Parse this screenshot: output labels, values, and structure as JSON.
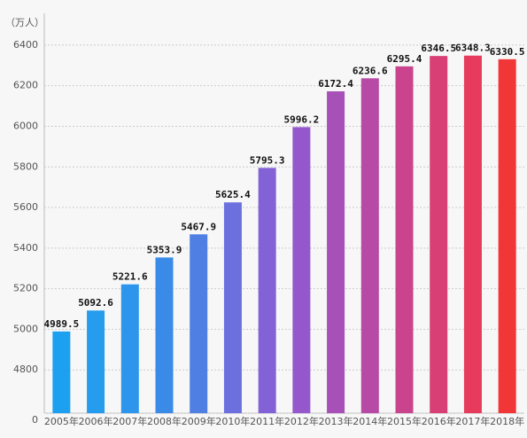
{
  "chart_data": {
    "type": "bar",
    "y_unit": "（万人）",
    "categories": [
      "2005年",
      "2006年",
      "2007年",
      "2008年",
      "2009年",
      "2010年",
      "2011年",
      "2012年",
      "2013年",
      "2014年",
      "2015年",
      "2016年",
      "2017年",
      "2018年"
    ],
    "values": [
      4989.5,
      5092.6,
      5221.6,
      5353.9,
      5467.9,
      5625.4,
      5795.3,
      5996.2,
      6172.4,
      6236.6,
      6295.4,
      6346.5,
      6348.3,
      6330.5
    ],
    "colors": [
      "#1ea0f0",
      "#259cee",
      "#2d96ec",
      "#3a8be8",
      "#4f7fe3",
      "#6b70de",
      "#8262d4",
      "#9558cc",
      "#a650b8",
      "#b64aa4",
      "#c9448c",
      "#d83f74",
      "#e63b5a",
      "#f03636"
    ],
    "ylim": [
      0,
      6500
    ],
    "axis_break": [
      0,
      4600
    ],
    "yticks": [
      0,
      4800,
      5000,
      5200,
      5400,
      5600,
      5800,
      6000,
      6200,
      6400
    ],
    "grid": true
  }
}
